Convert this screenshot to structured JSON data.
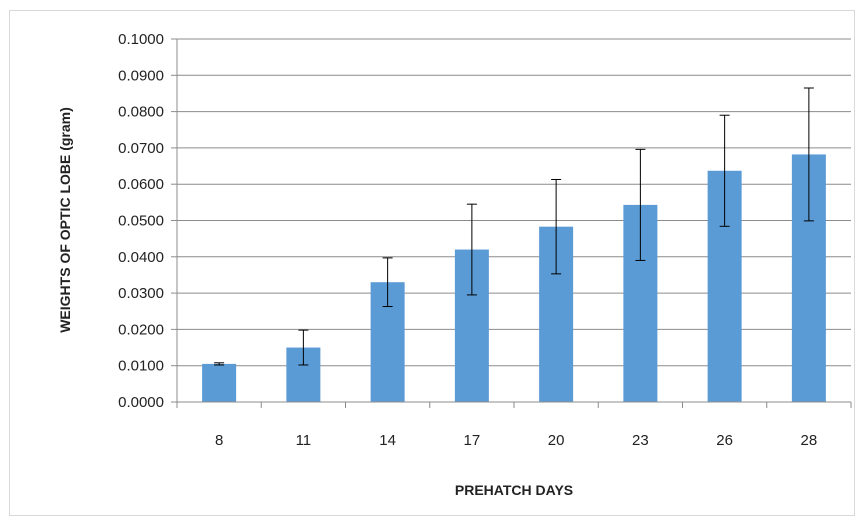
{
  "chart_data": {
    "type": "bar",
    "title": "",
    "xlabel": "PREHATCH DAYS",
    "ylabel": "WEIGHTS OF OPTIC LOBE (gram)",
    "categories": [
      "8",
      "11",
      "14",
      "17",
      "20",
      "23",
      "26",
      "28"
    ],
    "values": [
      0.0105,
      0.015,
      0.033,
      0.042,
      0.0483,
      0.0543,
      0.0637,
      0.0682
    ],
    "error": [
      0.0003,
      0.0048,
      0.0067,
      0.0125,
      0.013,
      0.0153,
      0.0153,
      0.0183
    ],
    "ylim": [
      0,
      0.1
    ],
    "yticks": [
      "0.0000",
      "0.0100",
      "0.0200",
      "0.0300",
      "0.0400",
      "0.0500",
      "0.0600",
      "0.0700",
      "0.0800",
      "0.0900",
      "0.1000"
    ],
    "grid": true,
    "legend": "none",
    "colors": {
      "bar": "#5b9bd5",
      "grid": "#8c8c8c",
      "errorbar": "#000000"
    }
  }
}
